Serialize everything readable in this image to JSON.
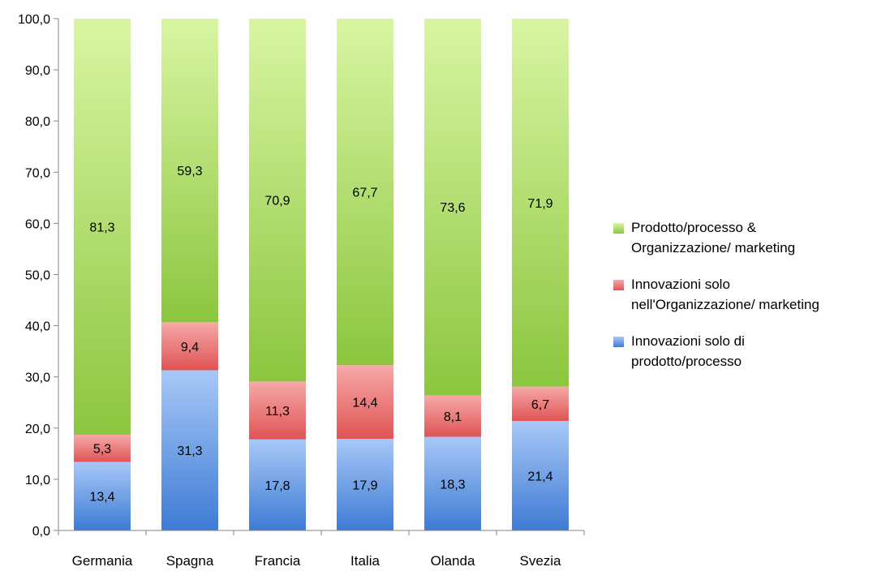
{
  "chart_data": {
    "type": "bar",
    "stacked": true,
    "categories": [
      "Germania",
      "Spagna",
      "Francia",
      "Italia",
      "Olanda",
      "Svezia"
    ],
    "series": [
      {
        "name": "Innovazioni solo di prodotto/processo",
        "values": [
          13.4,
          31.3,
          17.8,
          17.9,
          18.3,
          21.4
        ],
        "labels": [
          "13,4",
          "31,3",
          "17,8",
          "17,9",
          "18,3",
          "21,4"
        ],
        "color_top": "#a8c8f7",
        "color_bottom": "#3e7bd4"
      },
      {
        "name": "Innovazioni solo nell'Organizzazione/ marketing",
        "values": [
          5.3,
          9.4,
          11.3,
          14.4,
          8.1,
          6.7
        ],
        "labels": [
          "5,3",
          "9,4",
          "11,3",
          "14,4",
          "8,1",
          "6,7"
        ],
        "color_top": "#f6a9a9",
        "color_bottom": "#e05454"
      },
      {
        "name": "Prodotto/processo & Organizzazione/ marketing",
        "values": [
          81.3,
          59.3,
          70.9,
          67.7,
          73.6,
          71.9
        ],
        "labels": [
          "81,3",
          "59,3",
          "70,9",
          "67,7",
          "73,6",
          "71,9"
        ],
        "color_top": "#d9f5a3",
        "color_bottom": "#8cc63f"
      }
    ],
    "yticks": [
      "0,0",
      "10,0",
      "20,0",
      "30,0",
      "40,0",
      "50,0",
      "60,0",
      "70,0",
      "80,0",
      "90,0",
      "100,0"
    ],
    "ylim": [
      0,
      100
    ],
    "grid": false,
    "legend_position": "right",
    "title": "",
    "xlabel": "",
    "ylabel": ""
  },
  "legend": {
    "green_line1": "Prodotto/processo &",
    "green_line2": "Organizzazione/ marketing",
    "red_line1": "Innovazioni solo",
    "red_line2": "nell'Organizzazione/ marketing",
    "blue_line1": "Innovazioni solo di",
    "blue_line2": "prodotto/processo"
  }
}
